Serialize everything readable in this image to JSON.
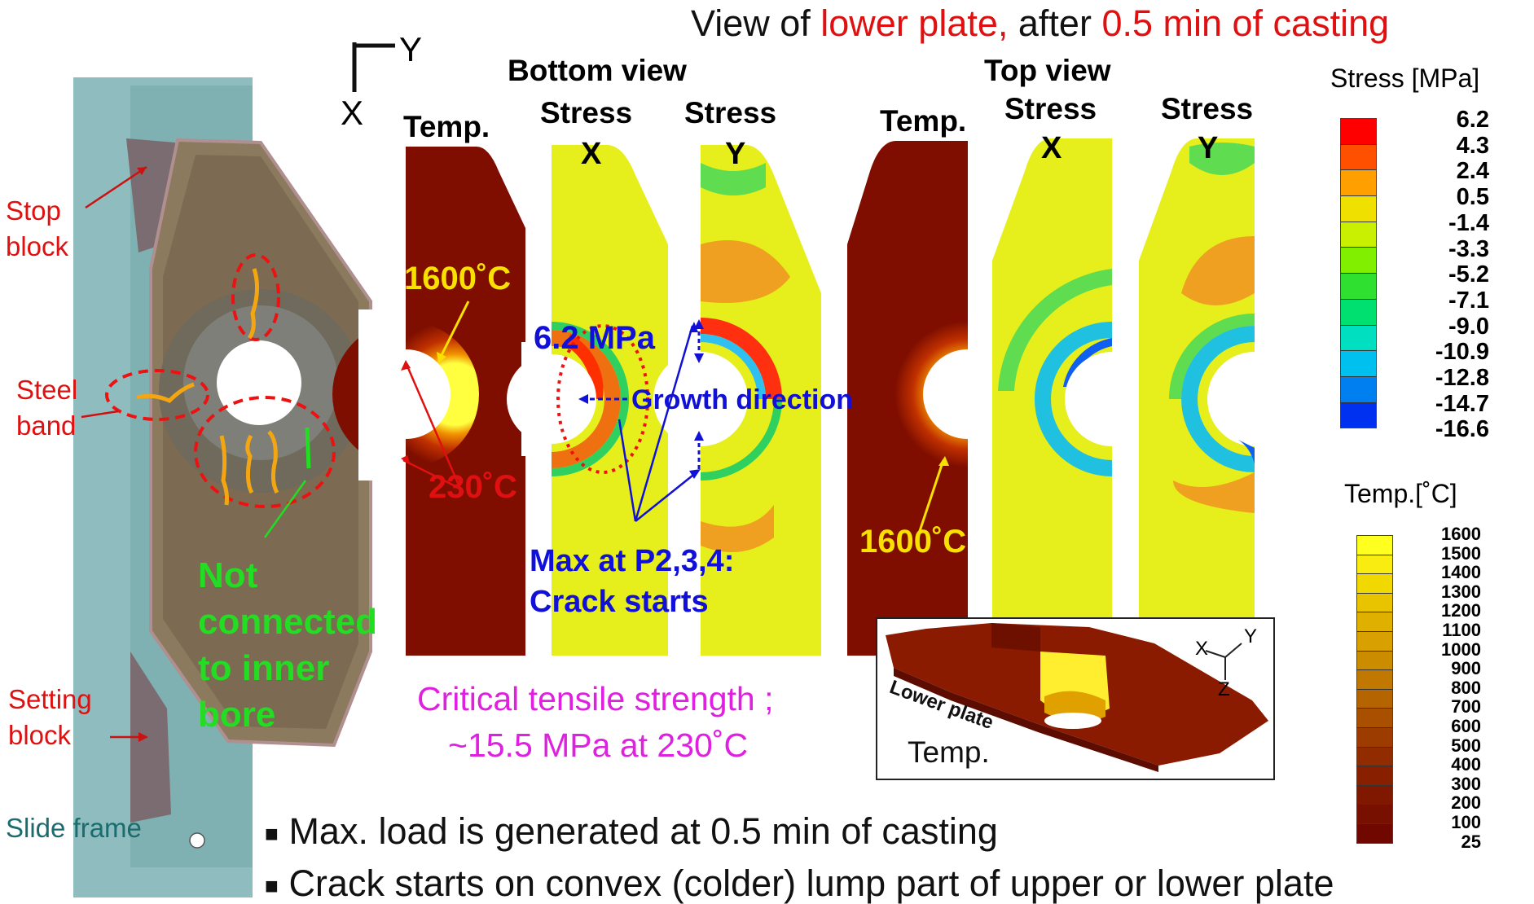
{
  "header": {
    "title_part1": "View of ",
    "title_part2": "lower plate,",
    "title_part3": " after ",
    "title_part4": "0.5 min of casting"
  },
  "axes_marker": {
    "y_label": "Y",
    "x_label": "X"
  },
  "left_photo": {
    "labels": {
      "stop_block_1": "Stop",
      "stop_block_2": "block",
      "steel_band_1": "Steel",
      "steel_band_2": "band",
      "setting_block_1": "Setting",
      "setting_block_2": "block",
      "slide_frame": "Slide frame"
    },
    "not_connected": [
      "Not",
      "connected",
      "to inner",
      "bore"
    ]
  },
  "bottom_view": {
    "title": "Bottom view",
    "temp_label": "Temp.",
    "stress_label": "Stress",
    "stress_x_axis": "X",
    "stress_y_axis": "Y",
    "temp_high": "1600˚C",
    "temp_low": "230˚C",
    "max_stress": "6.2 MPa",
    "growth": "Growth direction",
    "max_at_1": "Max at P2,3,4:",
    "max_at_2": "Crack starts"
  },
  "top_view": {
    "title": "Top view",
    "temp_label": "Temp.",
    "stress_label": "Stress",
    "stress_x_axis": "X",
    "stress_y_axis": "Y",
    "temp_high": "1600˚C"
  },
  "critical": {
    "line1": "Critical tensile strength ;",
    "line2": "~15.5 MPa at 230˚C"
  },
  "inset": {
    "part_label": "Lower plate",
    "temp_label": "Temp.",
    "axes": {
      "x": "X",
      "y": "Y",
      "z": "Z"
    }
  },
  "stress_legend": {
    "title": "Stress [MPa]",
    "values": [
      "6.2",
      "4.3",
      "2.4",
      "0.5",
      "-1.4",
      "-3.3",
      "-5.2",
      "-7.1",
      "-9.0",
      "-10.9",
      "-12.8",
      "-14.7",
      "-16.6"
    ],
    "colors": [
      "#ff0000",
      "#ff5000",
      "#ffa000",
      "#f0e000",
      "#c8f000",
      "#80f000",
      "#30e030",
      "#00e070",
      "#00e0c0",
      "#00c0f0",
      "#0080f0",
      "#0030f0"
    ]
  },
  "temp_legend": {
    "title": "Temp.[˚C]",
    "values": [
      "1600",
      "1500",
      "1400",
      "1300",
      "1200",
      "1100",
      "1000",
      "900",
      "800",
      "700",
      "600",
      "500",
      "400",
      "300",
      "200",
      "100",
      "25"
    ],
    "colors": [
      "#ffff20",
      "#f8ec10",
      "#f0d800",
      "#e8c400",
      "#e0b000",
      "#d8a000",
      "#cc8c00",
      "#c07800",
      "#b46400",
      "#a85000",
      "#9c3c00",
      "#902c00",
      "#882000",
      "#801800",
      "#781000",
      "#700800"
    ]
  },
  "bullets": [
    "Max. load is generated at 0.5 min of casting",
    "Crack starts on convex (colder) lump part of upper or lower plate"
  ]
}
